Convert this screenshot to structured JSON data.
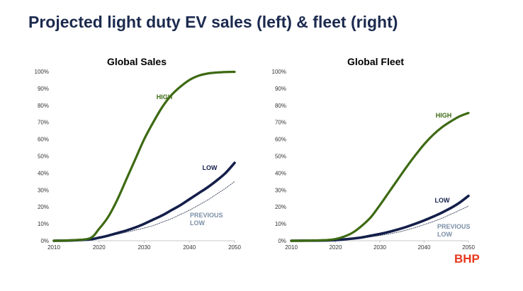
{
  "slide": {
    "title": "Projected light duty EV sales (left) & fleet (right)",
    "logo": "BHP"
  },
  "colors": {
    "high": "#3d6a12",
    "low": "#141f4a",
    "previous_low": "#333b55",
    "previous_low_label": "#7b8fa6",
    "axis": "#c8c8c8",
    "logo": "#e8361e"
  },
  "chart_data": [
    {
      "type": "line",
      "title": "Global Sales",
      "xlabel": "",
      "ylabel": "",
      "x_ticks": [
        "2010",
        "2020",
        "2030",
        "2040",
        "2050"
      ],
      "y_ticks": [
        "0%",
        "10%",
        "20%",
        "30%",
        "40%",
        "50%",
        "60%",
        "70%",
        "80%",
        "90%",
        "100%"
      ],
      "xlim": [
        2010,
        2050
      ],
      "ylim": [
        0,
        100
      ],
      "grid": false,
      "series": [
        {
          "name": "HIGH",
          "label": "HIGH",
          "x": [
            2010,
            2014,
            2018,
            2020,
            2022,
            2024,
            2026,
            2028,
            2030,
            2032,
            2034,
            2036,
            2038,
            2040,
            2042,
            2044,
            2046,
            2048,
            2050
          ],
          "values": [
            0,
            0.3,
            1.5,
            7,
            14,
            24,
            36,
            48,
            60,
            70,
            79,
            86,
            91,
            95,
            97.5,
            98.8,
            99.4,
            99.7,
            99.8
          ]
        },
        {
          "name": "LOW",
          "label": "LOW",
          "x": [
            2010,
            2014,
            2018,
            2020,
            2022,
            2024,
            2026,
            2028,
            2030,
            2032,
            2034,
            2036,
            2038,
            2040,
            2042,
            2044,
            2046,
            2048,
            2050
          ],
          "values": [
            0,
            0.2,
            0.8,
            1.8,
            3,
            4.5,
            6,
            7.8,
            10,
            12.5,
            15,
            18,
            21,
            24.5,
            28,
            31.5,
            35.5,
            40,
            46
          ]
        },
        {
          "name": "PREVIOUS LOW",
          "label": "PREVIOUS LOW",
          "x": [
            2010,
            2014,
            2018,
            2020,
            2022,
            2024,
            2026,
            2028,
            2030,
            2032,
            2034,
            2036,
            2038,
            2040,
            2042,
            2044,
            2046,
            2048,
            2050
          ],
          "values": [
            0,
            0.2,
            0.7,
            1.5,
            2.6,
            3.8,
            5,
            6.2,
            7.5,
            9,
            11,
            13,
            15.5,
            18,
            21,
            24,
            27.5,
            31,
            35
          ]
        }
      ]
    },
    {
      "type": "line",
      "title": "Global Fleet",
      "xlabel": "",
      "ylabel": "",
      "x_ticks": [
        "2010",
        "2020",
        "2030",
        "2040",
        "2050"
      ],
      "y_ticks": [
        "0%",
        "10%",
        "20%",
        "30%",
        "40%",
        "50%",
        "60%",
        "70%",
        "80%",
        "90%",
        "100%"
      ],
      "xlim": [
        2010,
        2050
      ],
      "ylim": [
        0,
        100
      ],
      "grid": false,
      "series": [
        {
          "name": "HIGH",
          "label": "HIGH",
          "x": [
            2010,
            2014,
            2018,
            2020,
            2022,
            2024,
            2026,
            2028,
            2030,
            2032,
            2034,
            2036,
            2038,
            2040,
            2042,
            2044,
            2046,
            2048,
            2050
          ],
          "values": [
            0,
            0.1,
            0.4,
            1,
            2.5,
            5,
            9,
            14,
            21,
            28.5,
            36,
            43.5,
            50.5,
            57,
            62.5,
            67,
            70.5,
            73.5,
            75.5
          ]
        },
        {
          "name": "LOW",
          "label": "LOW",
          "x": [
            2010,
            2014,
            2018,
            2020,
            2022,
            2024,
            2026,
            2028,
            2030,
            2032,
            2034,
            2036,
            2038,
            2040,
            2042,
            2044,
            2046,
            2048,
            2050
          ],
          "values": [
            0,
            0.05,
            0.2,
            0.4,
            0.8,
            1.3,
            2,
            3,
            4,
            5.2,
            6.6,
            8.2,
            10,
            12,
            14.2,
            16.6,
            19.3,
            22.5,
            26.5
          ]
        },
        {
          "name": "PREVIOUS LOW",
          "label": "PREVIOUS LOW",
          "x": [
            2010,
            2014,
            2018,
            2020,
            2022,
            2024,
            2026,
            2028,
            2030,
            2032,
            2034,
            2036,
            2038,
            2040,
            2042,
            2044,
            2046,
            2048,
            2050
          ],
          "values": [
            0,
            0.05,
            0.2,
            0.4,
            0.7,
            1.1,
            1.6,
            2.3,
            3.1,
            4,
            5,
            6.3,
            7.8,
            9.5,
            11.3,
            13.3,
            15.6,
            18,
            20.5
          ]
        }
      ]
    }
  ]
}
